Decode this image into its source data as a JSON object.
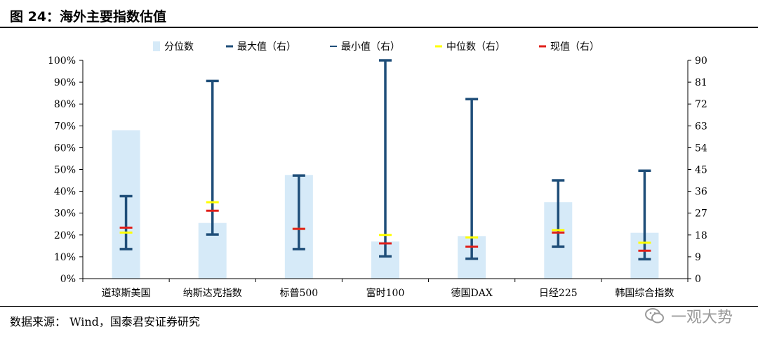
{
  "figure": {
    "title": "图 24：海外主要指数估值",
    "source": "数据来源：   Wind，国泰君安证券研究",
    "watermark": "一观大势"
  },
  "colors": {
    "percentile_bar": "#d6eaf8",
    "max_min": "#1f4e79",
    "median": "#ffff00",
    "current": "#e0201b"
  },
  "chart_data": {
    "type": "bar",
    "title": "",
    "categories": [
      "道琼斯美国",
      "纳斯达克指数",
      "标普500",
      "富时100",
      "德国DAX",
      "日经225",
      "韩国综合指数"
    ],
    "legend": {
      "placement": "top",
      "entries": [
        "分位数",
        "最大值（右）",
        "最小值（右）",
        "中位数（右）",
        "现值（右）"
      ]
    },
    "left_axis": {
      "ylim": [
        0,
        100
      ],
      "ticks": [
        "0%",
        "10%",
        "20%",
        "30%",
        "40%",
        "50%",
        "60%",
        "70%",
        "80%",
        "90%",
        "100%"
      ]
    },
    "right_axis": {
      "ylim": [
        0,
        90
      ],
      "ticks": [
        "0",
        "9",
        "18",
        "27",
        "36",
        "45",
        "54",
        "63",
        "72",
        "81",
        "90"
      ]
    },
    "series": [
      {
        "name": "分位数",
        "axis": "left",
        "values": [
          68,
          25.5,
          47.5,
          17,
          19.5,
          35,
          21
        ]
      },
      {
        "name": "最大值（右）",
        "axis": "right",
        "values": [
          34,
          81.5,
          42.5,
          90,
          74,
          40.5,
          44.5
        ]
      },
      {
        "name": "最小值（右）",
        "axis": "right",
        "values": [
          12.2,
          18.2,
          12.2,
          9.2,
          8.2,
          13.2,
          8
        ]
      },
      {
        "name": "中位数（右）",
        "axis": "right",
        "values": [
          19,
          31.5,
          20.5,
          18,
          17,
          20,
          14.8
        ]
      },
      {
        "name": "现值（右）",
        "axis": "right",
        "values": [
          21,
          28,
          20.5,
          14.5,
          13.2,
          19,
          11.5
        ]
      }
    ],
    "grid": false
  }
}
